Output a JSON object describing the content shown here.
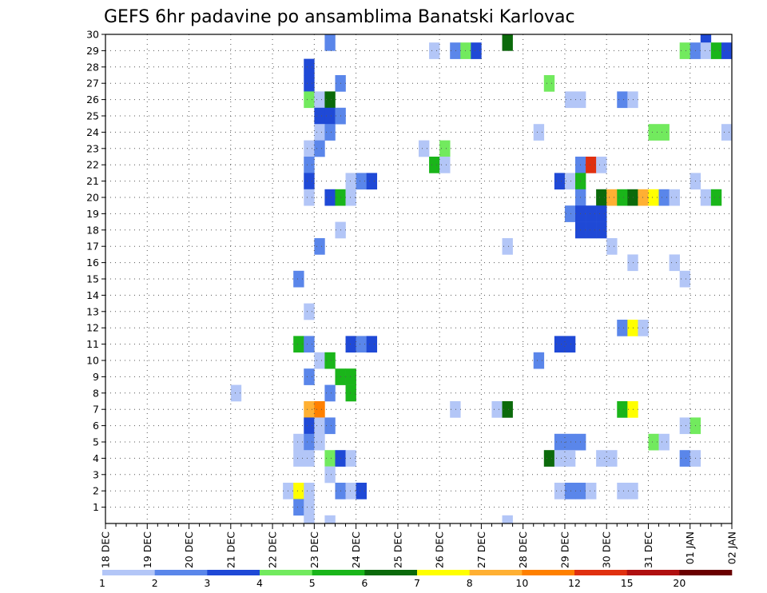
{
  "chart_data": {
    "type": "heatmap",
    "title": "GEFS 6hr padavine po ansamblima Banatski Karlovac",
    "x_ticks": [
      "18 DEC",
      "19 DEC",
      "20 DEC",
      "21 DEC",
      "22 DEC",
      "23 DEC",
      "24 DEC",
      "25 DEC",
      "26 DEC",
      "27 DEC",
      "28 DEC",
      "29 DEC",
      "30 DEC",
      "31 DEC",
      "01 JAN",
      "02 JAN"
    ],
    "x_range": [
      "18 DEC 00Z",
      "02 JAN 00Z"
    ],
    "x_step_hours": 6,
    "y_ticks": [
      1,
      2,
      3,
      4,
      5,
      6,
      7,
      8,
      9,
      10,
      11,
      12,
      13,
      14,
      15,
      16,
      17,
      18,
      19,
      20,
      21,
      22,
      23,
      24,
      25,
      26,
      27,
      28,
      29,
      30
    ],
    "y_range": [
      0,
      30
    ],
    "grid": "dotted",
    "colorbar": {
      "placement": "bottom",
      "levels": [
        "1",
        "2",
        "3",
        "4",
        "5",
        "6",
        "7",
        "8",
        "10",
        "12",
        "15",
        "20"
      ],
      "colors": [
        "#b3c6f7",
        "#5a86ea",
        "#1f49d6",
        "#72ea5e",
        "#1ab51a",
        "#0b6a0b",
        "#ffff00",
        "#ffb033",
        "#ff8000",
        "#e03010",
        "#b01010",
        "#6a0000"
      ]
    },
    "cells": [
      [
        30,
        "23 DEC 06Z",
        1
      ],
      [
        30,
        "27 DEC 12Z",
        5
      ],
      [
        30,
        "01 JAN 06Z",
        2
      ],
      [
        29,
        "25 DEC 18Z",
        0
      ],
      [
        29,
        "26 DEC 06Z",
        1
      ],
      [
        29,
        "26 DEC 12Z",
        3
      ],
      [
        29,
        "26 DEC 18Z",
        2
      ],
      [
        29,
        "31 DEC 18Z",
        3
      ],
      [
        29,
        "01 JAN 00Z",
        1
      ],
      [
        29,
        "01 JAN 06Z",
        0
      ],
      [
        29,
        "01 JAN 12Z",
        4
      ],
      [
        29,
        "01 JAN 18Z",
        2
      ],
      [
        28,
        "22 DEC 18Z",
        2
      ],
      [
        27,
        "22 DEC 18Z",
        2
      ],
      [
        27,
        "23 DEC 12Z",
        1
      ],
      [
        27,
        "28 DEC 12Z",
        3
      ],
      [
        26,
        "22 DEC 18Z",
        3
      ],
      [
        26,
        "23 DEC 00Z",
        0
      ],
      [
        26,
        "23 DEC 06Z",
        5
      ],
      [
        26,
        "29 DEC 00Z",
        0
      ],
      [
        26,
        "29 DEC 06Z",
        0
      ],
      [
        26,
        "30 DEC 06Z",
        1
      ],
      [
        26,
        "30 DEC 12Z",
        0
      ],
      [
        25,
        "23 DEC 00Z",
        2
      ],
      [
        25,
        "23 DEC 06Z",
        2
      ],
      [
        25,
        "23 DEC 12Z",
        1
      ],
      [
        24,
        "23 DEC 00Z",
        0
      ],
      [
        24,
        "23 DEC 06Z",
        1
      ],
      [
        24,
        "28 DEC 06Z",
        0
      ],
      [
        24,
        "31 DEC 00Z",
        3
      ],
      [
        24,
        "31 DEC 06Z",
        3
      ],
      [
        24,
        "01 JAN 18Z",
        0
      ],
      [
        23,
        "22 DEC 18Z",
        0
      ],
      [
        23,
        "23 DEC 00Z",
        1
      ],
      [
        23,
        "25 DEC 12Z",
        0
      ],
      [
        23,
        "26 DEC 00Z",
        3
      ],
      [
        22,
        "22 DEC 18Z",
        1
      ],
      [
        22,
        "25 DEC 18Z",
        4
      ],
      [
        22,
        "26 DEC 00Z",
        0
      ],
      [
        22,
        "29 DEC 06Z",
        1
      ],
      [
        22,
        "29 DEC 12Z",
        9
      ],
      [
        22,
        "29 DEC 18Z",
        0
      ],
      [
        21,
        "22 DEC 18Z",
        2
      ],
      [
        21,
        "23 DEC 18Z",
        0
      ],
      [
        21,
        "24 DEC 00Z",
        1
      ],
      [
        21,
        "24 DEC 06Z",
        2
      ],
      [
        21,
        "28 DEC 18Z",
        2
      ],
      [
        21,
        "29 DEC 00Z",
        0
      ],
      [
        21,
        "29 DEC 06Z",
        4
      ],
      [
        21,
        "01 JAN 00Z",
        0
      ],
      [
        20,
        "22 DEC 18Z",
        0
      ],
      [
        20,
        "23 DEC 06Z",
        2
      ],
      [
        20,
        "23 DEC 12Z",
        4
      ],
      [
        20,
        "23 DEC 18Z",
        0
      ],
      [
        20,
        "29 DEC 06Z",
        1
      ],
      [
        20,
        "29 DEC 18Z",
        5
      ],
      [
        20,
        "30 DEC 00Z",
        7
      ],
      [
        20,
        "30 DEC 06Z",
        4
      ],
      [
        20,
        "30 DEC 12Z",
        5
      ],
      [
        20,
        "30 DEC 18Z",
        7
      ],
      [
        20,
        "31 DEC 00Z",
        6
      ],
      [
        20,
        "31 DEC 06Z",
        1
      ],
      [
        20,
        "31 DEC 12Z",
        0
      ],
      [
        20,
        "01 JAN 06Z",
        0
      ],
      [
        20,
        "01 JAN 12Z",
        4
      ],
      [
        19,
        "29 DEC 00Z",
        1
      ],
      [
        19,
        "29 DEC 06Z",
        2
      ],
      [
        19,
        "29 DEC 12Z",
        2
      ],
      [
        19,
        "29 DEC 18Z",
        2
      ],
      [
        18,
        "23 DEC 12Z",
        0
      ],
      [
        18,
        "29 DEC 06Z",
        2
      ],
      [
        18,
        "29 DEC 12Z",
        2
      ],
      [
        18,
        "29 DEC 18Z",
        2
      ],
      [
        17,
        "23 DEC 00Z",
        1
      ],
      [
        17,
        "27 DEC 12Z",
        0
      ],
      [
        17,
        "30 DEC 00Z",
        0
      ],
      [
        16,
        "30 DEC 12Z",
        0
      ],
      [
        16,
        "31 DEC 12Z",
        0
      ],
      [
        15,
        "22 DEC 12Z",
        1
      ],
      [
        15,
        "31 DEC 18Z",
        0
      ],
      [
        13,
        "22 DEC 18Z",
        0
      ],
      [
        12,
        "30 DEC 06Z",
        1
      ],
      [
        12,
        "30 DEC 12Z",
        6
      ],
      [
        12,
        "30 DEC 18Z",
        0
      ],
      [
        11,
        "22 DEC 12Z",
        4
      ],
      [
        11,
        "22 DEC 18Z",
        1
      ],
      [
        11,
        "23 DEC 18Z",
        2
      ],
      [
        11,
        "24 DEC 00Z",
        1
      ],
      [
        11,
        "24 DEC 06Z",
        2
      ],
      [
        11,
        "28 DEC 18Z",
        2
      ],
      [
        11,
        "29 DEC 00Z",
        2
      ],
      [
        10,
        "23 DEC 00Z",
        0
      ],
      [
        10,
        "23 DEC 06Z",
        4
      ],
      [
        10,
        "28 DEC 06Z",
        1
      ],
      [
        9,
        "22 DEC 18Z",
        1
      ],
      [
        9,
        "23 DEC 12Z",
        4
      ],
      [
        9,
        "23 DEC 18Z",
        4
      ],
      [
        8,
        "21 DEC 00Z",
        0
      ],
      [
        8,
        "23 DEC 06Z",
        1
      ],
      [
        8,
        "23 DEC 18Z",
        4
      ],
      [
        7,
        "22 DEC 18Z",
        7
      ],
      [
        7,
        "23 DEC 00Z",
        8
      ],
      [
        7,
        "26 DEC 06Z",
        0
      ],
      [
        7,
        "27 DEC 06Z",
        0
      ],
      [
        7,
        "27 DEC 12Z",
        5
      ],
      [
        7,
        "30 DEC 06Z",
        4
      ],
      [
        7,
        "30 DEC 12Z",
        6
      ],
      [
        6,
        "22 DEC 18Z",
        2
      ],
      [
        6,
        "23 DEC 00Z",
        0
      ],
      [
        6,
        "23 DEC 06Z",
        1
      ],
      [
        6,
        "31 DEC 18Z",
        0
      ],
      [
        6,
        "01 JAN 00Z",
        3
      ],
      [
        5,
        "22 DEC 12Z",
        0
      ],
      [
        5,
        "22 DEC 18Z",
        1
      ],
      [
        5,
        "23 DEC 00Z",
        0
      ],
      [
        5,
        "28 DEC 18Z",
        1
      ],
      [
        5,
        "29 DEC 00Z",
        1
      ],
      [
        5,
        "29 DEC 06Z",
        1
      ],
      [
        5,
        "31 DEC 00Z",
        3
      ],
      [
        5,
        "31 DEC 06Z",
        0
      ],
      [
        4,
        "22 DEC 12Z",
        0
      ],
      [
        4,
        "22 DEC 18Z",
        0
      ],
      [
        4,
        "23 DEC 06Z",
        3
      ],
      [
        4,
        "23 DEC 12Z",
        2
      ],
      [
        4,
        "23 DEC 18Z",
        0
      ],
      [
        4,
        "28 DEC 12Z",
        5
      ],
      [
        4,
        "28 DEC 18Z",
        0
      ],
      [
        4,
        "29 DEC 00Z",
        0
      ],
      [
        4,
        "29 DEC 18Z",
        0
      ],
      [
        4,
        "30 DEC 00Z",
        0
      ],
      [
        4,
        "31 DEC 18Z",
        1
      ],
      [
        4,
        "01 JAN 00Z",
        0
      ],
      [
        3,
        "23 DEC 06Z",
        0
      ],
      [
        2,
        "22 DEC 06Z",
        0
      ],
      [
        2,
        "22 DEC 12Z",
        6
      ],
      [
        2,
        "22 DEC 18Z",
        0
      ],
      [
        2,
        "23 DEC 12Z",
        1
      ],
      [
        2,
        "23 DEC 18Z",
        0
      ],
      [
        2,
        "24 DEC 00Z",
        2
      ],
      [
        2,
        "28 DEC 18Z",
        0
      ],
      [
        2,
        "29 DEC 00Z",
        1
      ],
      [
        2,
        "29 DEC 06Z",
        1
      ],
      [
        2,
        "29 DEC 12Z",
        0
      ],
      [
        2,
        "30 DEC 06Z",
        0
      ],
      [
        2,
        "30 DEC 12Z",
        0
      ],
      [
        1,
        "22 DEC 12Z",
        1
      ],
      [
        1,
        "22 DEC 18Z",
        0
      ],
      [
        0,
        "22 DEC 18Z",
        0
      ],
      [
        0,
        "23 DEC 06Z",
        0
      ],
      [
        0,
        "27 DEC 12Z",
        0
      ]
    ]
  }
}
